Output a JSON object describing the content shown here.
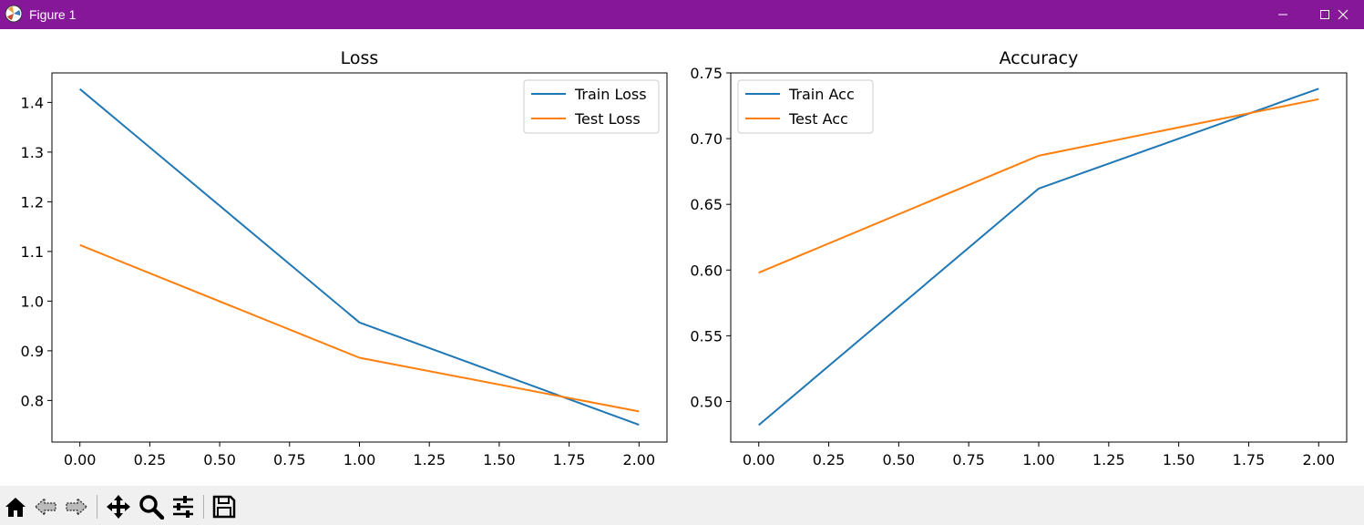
{
  "window": {
    "title": "Figure 1",
    "titlebar_color": "#871799"
  },
  "toolbar": {
    "icons": [
      "home-icon",
      "back-arrow-icon",
      "forward-arrow-icon",
      "pan-move-icon",
      "zoom-magnifier-icon",
      "configure-subplots-icon",
      "save-floppy-icon"
    ]
  },
  "chart_data": [
    {
      "type": "line",
      "title": "Loss",
      "xlabel": "",
      "ylabel": "",
      "xlim": [
        -0.1,
        2.1
      ],
      "ylim": [
        0.7163,
        1.4594
      ],
      "xticks": [
        0.0,
        0.25,
        0.5,
        0.75,
        1.0,
        1.25,
        1.5,
        1.75,
        2.0
      ],
      "xtick_labels": [
        "0.00",
        "0.25",
        "0.50",
        "0.75",
        "1.00",
        "1.25",
        "1.50",
        "1.75",
        "2.00"
      ],
      "yticks": [
        0.8,
        0.9,
        1.0,
        1.1,
        1.2,
        1.3,
        1.4
      ],
      "ytick_labels": [
        "0.8",
        "0.9",
        "1.0",
        "1.1",
        "1.2",
        "1.3",
        "1.4"
      ],
      "x": [
        0,
        1,
        2
      ],
      "series": [
        {
          "name": "Train Loss",
          "color": "#1f77b4",
          "values": [
            1.427,
            0.957,
            0.751
          ]
        },
        {
          "name": "Test Loss",
          "color": "#ff7f0e",
          "values": [
            1.113,
            0.886,
            0.778
          ]
        }
      ],
      "legend": "upper right",
      "grid": false
    },
    {
      "type": "line",
      "title": "Accuracy",
      "xlabel": "",
      "ylabel": "",
      "xlim": [
        -0.1,
        2.1
      ],
      "ylim": [
        0.4691,
        0.75
      ],
      "xticks": [
        0.0,
        0.25,
        0.5,
        0.75,
        1.0,
        1.25,
        1.5,
        1.75,
        2.0
      ],
      "xtick_labels": [
        "0.00",
        "0.25",
        "0.50",
        "0.75",
        "1.00",
        "1.25",
        "1.50",
        "1.75",
        "2.00"
      ],
      "yticks": [
        0.5,
        0.55,
        0.6,
        0.65,
        0.7,
        0.75
      ],
      "ytick_labels": [
        "0.50",
        "0.55",
        "0.60",
        "0.65",
        "0.70",
        "0.75"
      ],
      "x": [
        0,
        1,
        2
      ],
      "series": [
        {
          "name": "Train Acc",
          "color": "#1f77b4",
          "values": [
            0.482,
            0.662,
            0.738
          ]
        },
        {
          "name": "Test Acc",
          "color": "#ff7f0e",
          "values": [
            0.598,
            0.687,
            0.73
          ]
        }
      ],
      "legend": "upper left",
      "grid": false
    }
  ]
}
